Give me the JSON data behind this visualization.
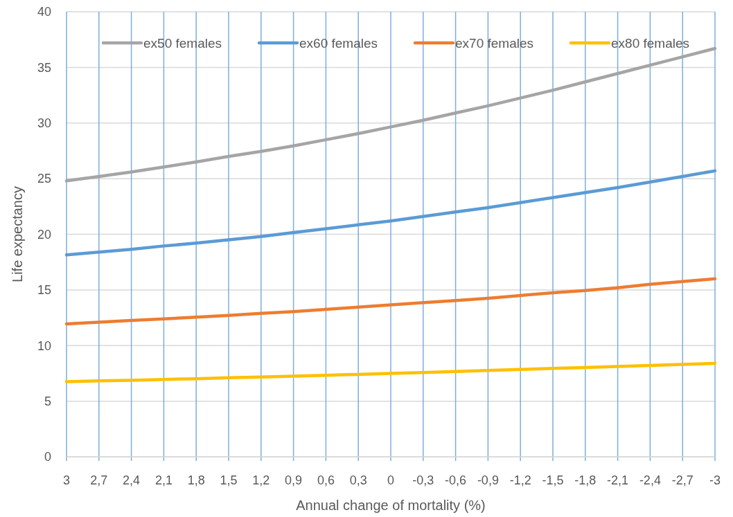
{
  "chart_data": {
    "type": "line",
    "xlabel": "Annual change of mortality (%)",
    "ylabel": "Life expectancy",
    "categories": [
      "3",
      "2,7",
      "2,4",
      "2,1",
      "1,8",
      "1,5",
      "1,2",
      "0,9",
      "0,6",
      "0,3",
      "0",
      "-0,3",
      "-0,6",
      "-0,9",
      "-1,2",
      "-1,5",
      "-1,8",
      "-2,1",
      "-2,4",
      "-2,7",
      "-3"
    ],
    "series": [
      {
        "name": "ex50 females",
        "color": "#a5a5a5",
        "values": [
          24.8,
          25.2,
          25.6,
          26.05,
          26.5,
          27.0,
          27.45,
          27.95,
          28.5,
          29.05,
          29.65,
          30.25,
          30.9,
          31.55,
          32.25,
          32.95,
          33.7,
          34.45,
          35.2,
          35.95,
          36.7
        ]
      },
      {
        "name": "ex60 females",
        "color": "#5b9bd5",
        "values": [
          18.15,
          18.4,
          18.65,
          18.95,
          19.2,
          19.5,
          19.8,
          20.15,
          20.5,
          20.85,
          21.2,
          21.6,
          22.0,
          22.4,
          22.85,
          23.3,
          23.75,
          24.2,
          24.7,
          25.2,
          25.7
        ]
      },
      {
        "name": "ex70 females",
        "color": "#ed7d31",
        "values": [
          11.95,
          12.1,
          12.25,
          12.4,
          12.55,
          12.7,
          12.9,
          13.05,
          13.25,
          13.45,
          13.65,
          13.85,
          14.05,
          14.25,
          14.5,
          14.75,
          14.95,
          15.2,
          15.5,
          15.75,
          16.0
        ]
      },
      {
        "name": "ex80 females",
        "color": "#ffc000",
        "values": [
          6.75,
          6.82,
          6.88,
          6.95,
          7.02,
          7.1,
          7.17,
          7.25,
          7.33,
          7.41,
          7.5,
          7.58,
          7.67,
          7.76,
          7.85,
          7.94,
          8.03,
          8.12,
          8.21,
          8.3,
          8.4
        ]
      }
    ],
    "ylim": [
      0,
      40
    ],
    "yticks": [
      0,
      5,
      10,
      15,
      20,
      25,
      30,
      35,
      40
    ],
    "grid": true,
    "legend": "top",
    "marker": "none",
    "line_style": "solid"
  }
}
